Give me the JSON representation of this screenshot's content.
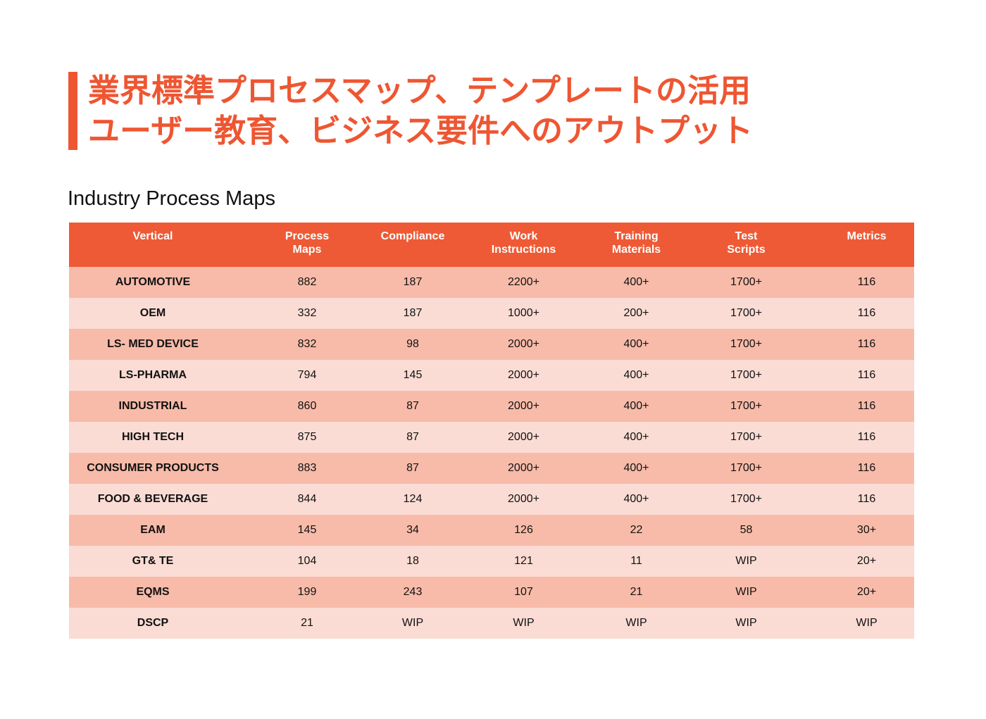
{
  "header": {
    "title_line1": "業界標準プロセスマップ、テンプレートの活用",
    "title_line2": "ユーザー教育、ビジネス要件へのアウトプット",
    "accent_color": "#ee5632"
  },
  "section": {
    "title": "Industry Process Maps"
  },
  "table": {
    "columns": [
      "Vertical",
      "Process\nMaps",
      "Compliance",
      "Work\nInstructions",
      "Training\nMaterials",
      "Test\nScripts",
      "Metrics"
    ],
    "rows": [
      [
        "AUTOMOTIVE",
        "882",
        "187",
        "2200+",
        "400+",
        "1700+",
        "116"
      ],
      [
        "OEM",
        "332",
        "187",
        "1000+",
        "200+",
        "1700+",
        "116"
      ],
      [
        "LS- MED DEVICE",
        "832",
        "98",
        "2000+",
        "400+",
        "1700+",
        "116"
      ],
      [
        "LS-PHARMA",
        "794",
        "145",
        "2000+",
        "400+",
        "1700+",
        "116"
      ],
      [
        "INDUSTRIAL",
        "860",
        "87",
        "2000+",
        "400+",
        "1700+",
        "116"
      ],
      [
        "HIGH TECH",
        "875",
        "87",
        "2000+",
        "400+",
        "1700+",
        "116"
      ],
      [
        "CONSUMER PRODUCTS",
        "883",
        "87",
        "2000+",
        "400+",
        "1700+",
        "116"
      ],
      [
        "FOOD & BEVERAGE",
        "844",
        "124",
        "2000+",
        "400+",
        "1700+",
        "116"
      ],
      [
        "EAM",
        "145",
        "34",
        "126",
        "22",
        "58",
        "30+"
      ],
      [
        "GT& TE",
        "104",
        "18",
        "121",
        "11",
        "WIP",
        "20+"
      ],
      [
        "EQMS",
        "199",
        "243",
        "107",
        "21",
        "WIP",
        "20+"
      ],
      [
        "DSCP",
        "21",
        "WIP",
        "WIP",
        "WIP",
        "WIP",
        "WIP"
      ]
    ],
    "header_color": "#ee5a35",
    "row_color_odd": "#f8bba9",
    "row_color_even": "#fadcd4"
  }
}
